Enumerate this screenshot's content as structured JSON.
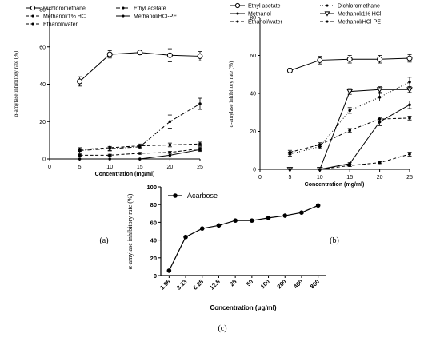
{
  "chart_data": [
    {
      "id": "a",
      "type": "line",
      "panel_label": "(a)",
      "xlabel": "Concentration (mg/ml)",
      "ylabel": "α-amylase inhibitory rate (%)",
      "xlim": [
        0,
        25
      ],
      "ylim": [
        0,
        80
      ],
      "xticks": [
        0,
        5,
        10,
        15,
        20,
        25
      ],
      "yticks": [
        0,
        20,
        40,
        60,
        80
      ],
      "legend_position": "top",
      "x": [
        5,
        10,
        15,
        20,
        25
      ],
      "series": [
        {
          "name": "Dichloromethane",
          "values": [
            41.5,
            56,
            57,
            55.5,
            55
          ],
          "errors": [
            2.5,
            2,
            1.2,
            3.5,
            2.5
          ],
          "marker": "open-circle",
          "line": "solid"
        },
        {
          "name": "Ethyl acetate",
          "values": [
            4.5,
            5.5,
            6.5,
            20,
            29.5
          ],
          "errors": [
            1.5,
            1.2,
            1,
            3.5,
            3
          ],
          "marker": "dot",
          "line": "dashdot"
        },
        {
          "name": "Methanol/1% HCl",
          "values": [
            5,
            6,
            7,
            7.5,
            8
          ],
          "errors": [
            1,
            1.5,
            1,
            1,
            1
          ],
          "marker": "dot",
          "line": "dashed"
        },
        {
          "name": "Methanol/HCl-PE",
          "values": [
            0,
            0,
            0,
            2,
            5
          ],
          "errors": [
            0,
            0,
            0,
            1,
            1
          ],
          "marker": "dot",
          "line": "solid"
        },
        {
          "name": "Ethanol/water",
          "values": [
            2,
            2,
            3,
            3.5,
            5.5
          ],
          "errors": [
            0.5,
            0.5,
            0.5,
            0.5,
            1
          ],
          "marker": "dot",
          "line": "dashed"
        }
      ]
    },
    {
      "id": "b",
      "type": "line",
      "panel_label": "(b)",
      "xlabel": "Concentration (mg/ml)",
      "ylabel": "α-amylase inhibitory rate (%)",
      "xlim": [
        0,
        25
      ],
      "ylim": [
        0,
        80
      ],
      "xticks": [
        0,
        5,
        10,
        15,
        20,
        25
      ],
      "yticks": [
        0,
        20,
        40,
        60,
        80
      ],
      "legend_position": "top",
      "x": [
        5,
        10,
        15,
        20,
        25
      ],
      "series": [
        {
          "name": "Ethyl acetate",
          "values": [
            52,
            57.5,
            58,
            58,
            58.5
          ],
          "errors": [
            1.2,
            2,
            2,
            2,
            2
          ],
          "marker": "open-circle",
          "line": "solid"
        },
        {
          "name": "Dichloromethane",
          "values": [
            8,
            12,
            31,
            38,
            46
          ],
          "errors": [
            1,
            1,
            1.5,
            2,
            2.5
          ],
          "marker": "dot",
          "line": "dotted"
        },
        {
          "name": "Methanol",
          "values": [
            0,
            0,
            3,
            25,
            34
          ],
          "errors": [
            0,
            0,
            0.5,
            2,
            2
          ],
          "marker": "dot",
          "line": "solid"
        },
        {
          "name": "Methanol/1% HCl",
          "values": [
            0,
            0,
            41,
            42,
            42
          ],
          "errors": [
            0,
            0,
            1.5,
            1.5,
            1.5
          ],
          "marker": "open-triangle-down",
          "line": "solid"
        },
        {
          "name": "Ethanol/water",
          "values": [
            0,
            0,
            2,
            3.5,
            8
          ],
          "errors": [
            0,
            0,
            0.5,
            0.5,
            1
          ],
          "marker": "dot",
          "line": "dashed"
        },
        {
          "name": "Methanol/HCl-PE",
          "values": [
            9,
            13,
            20.5,
            26.5,
            27
          ],
          "errors": [
            1,
            1,
            1,
            1,
            1
          ],
          "marker": "dot",
          "line": "dashed"
        }
      ]
    },
    {
      "id": "c",
      "type": "line",
      "panel_label": "(c)",
      "xlabel": "Concentration (μg/ml)",
      "ylabel": "α-amylase inhibitory rate (%)",
      "ylim": [
        0,
        100
      ],
      "yticks": [
        0,
        20,
        40,
        60,
        80,
        100
      ],
      "legend_position": "top-left",
      "categories": [
        "1.56",
        "3.13",
        "6.25",
        "12.5",
        "25",
        "50",
        "100",
        "200",
        "400",
        "800"
      ],
      "series": [
        {
          "name": "Acarbose",
          "values": [
            5.5,
            43.5,
            53,
            56.5,
            62,
            62,
            65,
            67.5,
            71,
            79
          ],
          "marker": "filled-circle",
          "line": "solid"
        }
      ]
    }
  ]
}
